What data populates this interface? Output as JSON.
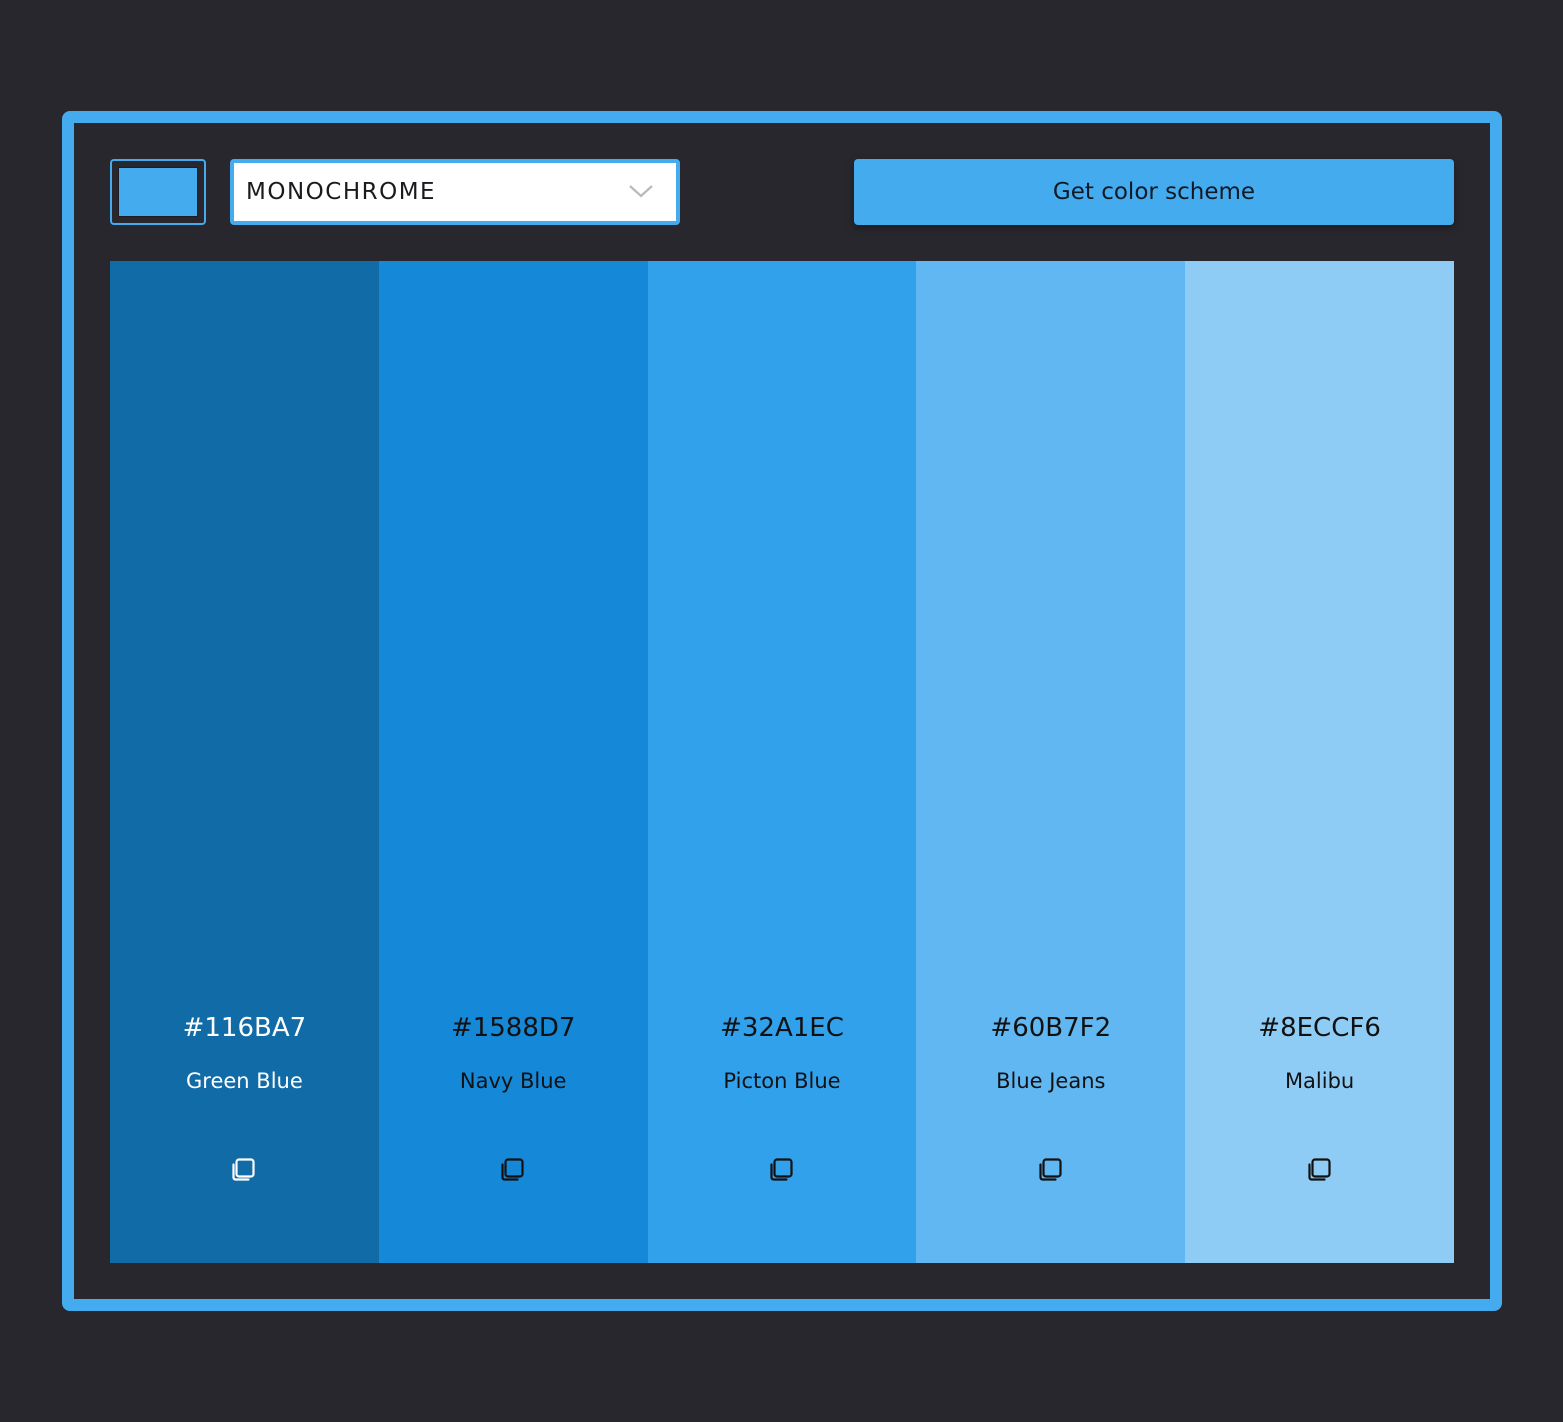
{
  "toolbar": {
    "base_color": "#45abef",
    "mode_value": "MONOCHROME",
    "mode_icon": "chevron-down-icon",
    "get_scheme_label": "Get color scheme"
  },
  "palette": {
    "colors": [
      {
        "hex": "#116BA7",
        "name": "Green Blue",
        "text_color": "#ffffff"
      },
      {
        "hex": "#1588D7",
        "name": "Navy Blue",
        "text_color": "#111111"
      },
      {
        "hex": "#32A1EC",
        "name": "Picton Blue",
        "text_color": "#111111"
      },
      {
        "hex": "#60B7F2",
        "name": "Blue Jeans",
        "text_color": "#111111"
      },
      {
        "hex": "#8ECCF6",
        "name": "Malibu",
        "text_color": "#111111"
      }
    ],
    "copy_icon": "copy-icon"
  }
}
